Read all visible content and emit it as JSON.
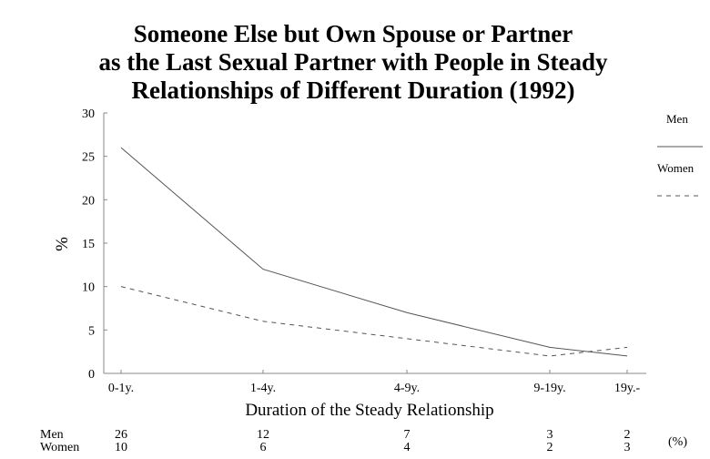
{
  "chart_data": {
    "type": "line",
    "title_lines": [
      "Someone Else but Own Spouse or Partner",
      "as the Last Sexual Partner with People in Steady",
      "Relationships of Different Duration (1992)"
    ],
    "xlabel": "Duration of the Steady Relationship",
    "ylabel": "%",
    "categories": [
      "0-1y.",
      "1-4y.",
      "4-9y.",
      "9-19y.",
      "19y.-"
    ],
    "ylim": [
      0,
      30
    ],
    "yticks": [
      0,
      5,
      10,
      15,
      20,
      25,
      30
    ],
    "grid": false,
    "legend_position": "right",
    "series": [
      {
        "name": "Men",
        "values": [
          26,
          12,
          7,
          3,
          2
        ],
        "style": "solid",
        "color": "#555555"
      },
      {
        "name": "Women",
        "values": [
          10,
          6,
          4,
          2,
          3
        ],
        "style": "dashed",
        "color": "#555555"
      }
    ],
    "table": {
      "rows": [
        {
          "label": "Men",
          "values": [
            "26",
            "12",
            "7",
            "3",
            "2"
          ]
        },
        {
          "label": "Women",
          "values": [
            "10",
            "6",
            "4",
            "2",
            "3"
          ]
        }
      ],
      "unit": "(%)"
    }
  }
}
